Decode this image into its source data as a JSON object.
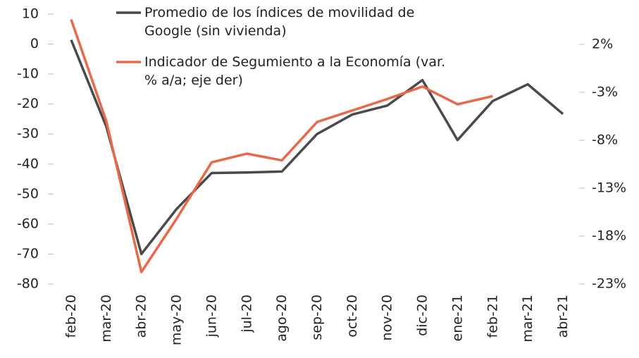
{
  "chart_data": {
    "type": "line",
    "categories": [
      "feb-20",
      "mar-20",
      "abr-20",
      "may-20",
      "jun-20",
      "jul-20",
      "ago-20",
      "sep-20",
      "oct-20",
      "nov-20",
      "dic-20",
      "ene-21",
      "feb-21",
      "mar-21",
      "abr-21"
    ],
    "series": [
      {
        "name": "Promedio de los índices de movilidad de Google (sin vivienda)",
        "color": "#4a4a4a",
        "values": [
          1.4,
          -27.5,
          -70,
          -55,
          -43,
          -42.8,
          -42.5,
          -30,
          -23.5,
          -20.5,
          -12,
          -32,
          -19,
          -13.4,
          -23.3
        ]
      },
      {
        "name": "Indicador de Segumiento a la Economía (var. % a/a; eje der)",
        "color": "#e8694a",
        "axis": "y2",
        "values": [
          4.6,
          -6.0,
          -21.75,
          -16.2,
          -10.3,
          -9.4,
          -10.1,
          -6.1,
          -4.9,
          -3.7,
          -2.4,
          -4.25,
          -3.4,
          null,
          null
        ]
      }
    ],
    "ylim": [
      -80,
      10
    ],
    "yticks": [
      10,
      0,
      -10,
      -20,
      -30,
      -40,
      -50,
      -60,
      -70,
      -80
    ],
    "y2lim": [
      -23,
      5.16
    ],
    "y2ticks": [
      {
        "value": 2,
        "label": "2%"
      },
      {
        "value": -3,
        "label": "-3%"
      },
      {
        "value": -8,
        "label": "-8%"
      },
      {
        "value": -13,
        "label": "-13%"
      },
      {
        "value": -18,
        "label": "-18%"
      },
      {
        "value": -23,
        "label": "-23%"
      }
    ],
    "legend": "top"
  }
}
